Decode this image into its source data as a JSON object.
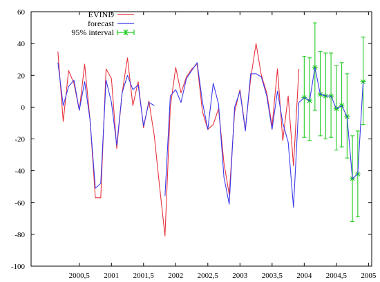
{
  "chart_data": {
    "type": "line",
    "title": "",
    "xlabel": "",
    "ylabel": "",
    "xlim": [
      1999.75,
      2005.05
    ],
    "ylim": [
      -100,
      60
    ],
    "grid": false,
    "legend_position": "top-center",
    "x_ticks": [
      {
        "value": 2000.5,
        "label": "2000,5"
      },
      {
        "value": 2001.0,
        "label": "2001"
      },
      {
        "value": 2001.5,
        "label": "2001,5"
      },
      {
        "value": 2002.0,
        "label": "2002"
      },
      {
        "value": 2002.5,
        "label": "2002,5"
      },
      {
        "value": 2003.0,
        "label": "2003"
      },
      {
        "value": 2003.5,
        "label": "2003,5"
      },
      {
        "value": 2004.0,
        "label": "2004"
      },
      {
        "value": 2004.5,
        "label": "2004,5"
      },
      {
        "value": 2005.0,
        "label": "2005"
      }
    ],
    "y_ticks": [
      {
        "value": -100,
        "label": "-100"
      },
      {
        "value": -80,
        "label": "-80"
      },
      {
        "value": -60,
        "label": "-60"
      },
      {
        "value": -40,
        "label": "-40"
      },
      {
        "value": -20,
        "label": "-20"
      },
      {
        "value": 0,
        "label": "0"
      },
      {
        "value": 20,
        "label": "20"
      },
      {
        "value": 40,
        "label": "40"
      },
      {
        "value": 60,
        "label": "60"
      }
    ],
    "x": [
      2000.1667,
      2000.25,
      2000.3333,
      2000.4167,
      2000.5,
      2000.5833,
      2000.6667,
      2000.75,
      2000.8333,
      2000.9167,
      2001.0,
      2001.0833,
      2001.1667,
      2001.25,
      2001.3333,
      2001.4167,
      2001.5,
      2001.5833,
      2001.6667,
      2001.75,
      2001.8333,
      2001.9167,
      2002.0,
      2002.0833,
      2002.1667,
      2002.25,
      2002.3333,
      2002.4167,
      2002.5,
      2002.5833,
      2002.6667,
      2002.75,
      2002.8333,
      2002.9167,
      2003.0,
      2003.0833,
      2003.1667,
      2003.25,
      2003.3333,
      2003.4167,
      2003.5,
      2003.5833,
      2003.6667,
      2003.75,
      2003.8333,
      2003.9167,
      2004.0,
      2004.0833,
      2004.1667,
      2004.25,
      2004.3333,
      2004.4167,
      2004.5,
      2004.5833,
      2004.6667,
      2004.75,
      2004.8333,
      2004.9167
    ],
    "series": [
      {
        "name": "EVIND",
        "color": "#e8323c",
        "values": [
          35,
          -9,
          23,
          15,
          -2,
          27,
          -8,
          -57,
          -57,
          24,
          18,
          -26,
          9,
          31,
          1,
          16,
          -13,
          4,
          -18,
          -50,
          -81,
          0,
          25,
          9,
          19,
          24,
          27,
          -3,
          -14,
          -11,
          -1,
          -35,
          -55,
          -3,
          11,
          -14,
          18,
          40,
          20,
          9,
          -12,
          24,
          -21,
          7,
          -37,
          24,
          null,
          null,
          null,
          null,
          null,
          null,
          null,
          null,
          null,
          null,
          null,
          null
        ]
      },
      {
        "name": "forecast",
        "color": "#3a3aee",
        "values": [
          28,
          1,
          13,
          17,
          -2,
          16,
          -8,
          -51,
          -48,
          17,
          3,
          -24,
          9,
          20,
          11,
          14,
          -12,
          3,
          1,
          null,
          -56,
          7,
          11,
          3,
          18,
          23,
          28,
          3,
          -14,
          15,
          2,
          -44,
          -61,
          0,
          10,
          -15,
          21,
          21,
          19,
          7,
          -14,
          10,
          -10,
          -22,
          -63,
          3,
          6,
          4,
          25,
          8,
          7,
          7,
          -1,
          1,
          -6,
          -45,
          -42,
          16
        ]
      },
      {
        "name": "95% interval",
        "color": "#22cc22",
        "type": "errorbar",
        "x": [
          2004.0,
          2004.0833,
          2004.1667,
          2004.25,
          2004.3333,
          2004.4167,
          2004.5,
          2004.5833,
          2004.6667,
          2004.75,
          2004.8333,
          2004.9167
        ],
        "center": [
          6,
          4,
          25,
          8,
          7,
          7,
          -1,
          1,
          -6,
          -45,
          -42,
          16
        ],
        "low": [
          -19,
          -21,
          -2,
          -18,
          -20,
          -19,
          -27,
          -25,
          -32,
          -72,
          -69,
          -11
        ],
        "high": [
          32,
          31,
          53,
          35,
          34,
          34,
          26,
          28,
          21,
          -18,
          -15,
          44
        ]
      }
    ]
  },
  "legend": {
    "items": [
      {
        "label": "EVIND",
        "color": "#e8323c",
        "style": "line"
      },
      {
        "label": "forecast",
        "color": "#3a3aee",
        "style": "line"
      },
      {
        "label": "95% interval",
        "color": "#22cc22",
        "style": "errorbar"
      }
    ]
  }
}
